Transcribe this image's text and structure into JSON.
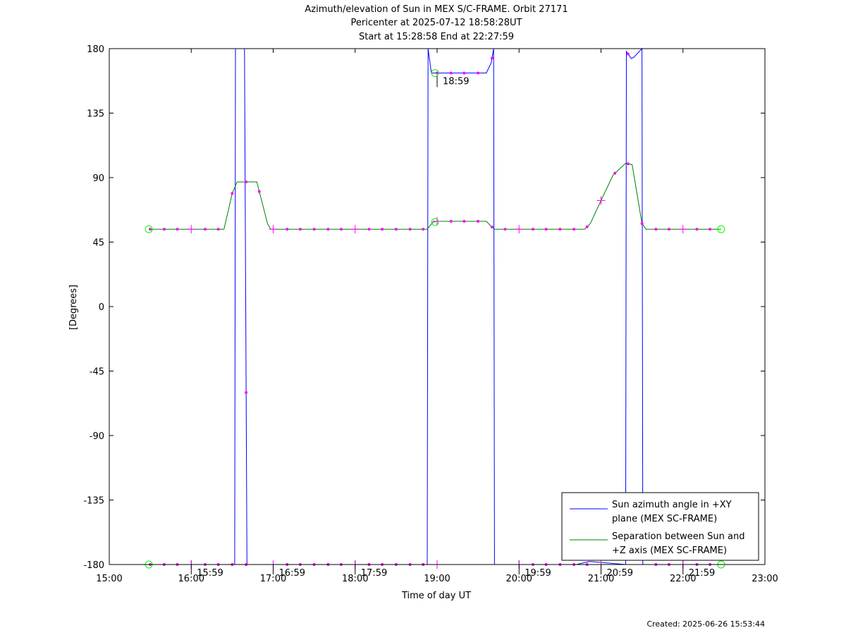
{
  "chart_data": {
    "type": "line",
    "title_lines": [
      "Azimuth/elevation of Sun in MEX S/C-FRAME.  Orbit 27171",
      "Pericenter at 2025-07-12 18:58:28UT",
      "Start at 15:28:58 End at 22:27:59"
    ],
    "xlabel": "Time of day UT",
    "ylabel": "[Degrees]",
    "xlim": [
      15.0,
      23.0
    ],
    "ylim": [
      -180,
      180
    ],
    "x_ticks": [
      {
        "value": 15,
        "label": "15:00"
      },
      {
        "value": 16,
        "label": "16:00"
      },
      {
        "value": 17,
        "label": "17:00"
      },
      {
        "value": 18,
        "label": "18:00"
      },
      {
        "value": 19,
        "label": "19:00"
      },
      {
        "value": 20,
        "label": "20:00"
      },
      {
        "value": 21,
        "label": "21:00"
      },
      {
        "value": 22,
        "label": "22:00"
      },
      {
        "value": 23,
        "label": "23:00"
      }
    ],
    "y_ticks": [
      180,
      135,
      90,
      45,
      0,
      -45,
      -90,
      -135,
      -180
    ],
    "time_markers": [
      {
        "x": 15.983,
        "y": -180,
        "label": "15:59"
      },
      {
        "x": 16.983,
        "y": -180,
        "label": "16:59"
      },
      {
        "x": 17.983,
        "y": -180,
        "label": "17:59"
      },
      {
        "x": 18.983,
        "y": 163,
        "label": "18:59"
      },
      {
        "x": 19.983,
        "y": -180,
        "label": "19:59"
      },
      {
        "x": 20.983,
        "y": -180,
        "label": "20:59"
      },
      {
        "x": 21.983,
        "y": -180,
        "label": "21:59"
      }
    ],
    "series": [
      {
        "name": "Sun azimuth angle in +XY plane (MEX SC-FRAME)",
        "color": "#0000ff",
        "points": [
          [
            15.483,
            -180
          ],
          [
            16.53,
            -180
          ],
          [
            16.54,
            180
          ],
          [
            16.65,
            180
          ],
          [
            16.68,
            -180
          ],
          [
            18.88,
            -180
          ],
          [
            18.89,
            180
          ],
          [
            18.93,
            163
          ],
          [
            19.0,
            163
          ],
          [
            19.6,
            163
          ],
          [
            19.66,
            170
          ],
          [
            19.69,
            180
          ],
          [
            19.7,
            -180
          ],
          [
            20.7,
            -180
          ],
          [
            20.85,
            -178
          ],
          [
            20.88,
            -178
          ],
          [
            21.3,
            -180
          ],
          [
            21.31,
            178
          ],
          [
            21.37,
            173
          ],
          [
            21.4,
            174
          ],
          [
            21.5,
            180
          ],
          [
            21.51,
            -180
          ],
          [
            22.466,
            -180
          ]
        ]
      },
      {
        "name": "Separation between Sun and +Z axis (MEX SC-FRAME)",
        "color": "#008000",
        "points": [
          [
            15.483,
            54
          ],
          [
            16.4,
            54
          ],
          [
            16.5,
            79
          ],
          [
            16.56,
            87
          ],
          [
            16.8,
            87
          ],
          [
            16.93,
            58
          ],
          [
            16.97,
            54
          ],
          [
            18.88,
            54
          ],
          [
            18.95,
            59
          ],
          [
            19.0,
            59.5
          ],
          [
            19.6,
            59.5
          ],
          [
            19.66,
            56
          ],
          [
            19.7,
            54
          ],
          [
            20.8,
            54
          ],
          [
            20.87,
            58
          ],
          [
            21.0,
            74
          ],
          [
            21.15,
            92
          ],
          [
            21.3,
            100
          ],
          [
            21.38,
            99
          ],
          [
            21.5,
            58
          ],
          [
            21.55,
            54
          ],
          [
            22.466,
            54
          ]
        ]
      }
    ],
    "markers_magenta": {
      "color": "#ff00ff",
      "dots_green_series": [
        15.5,
        15.67,
        15.83,
        16.17,
        16.33,
        16.5,
        16.67,
        16.83,
        17.17,
        17.33,
        17.5,
        17.67,
        17.83,
        18.17,
        18.33,
        18.5,
        18.67,
        18.83,
        19.17,
        19.33,
        19.5,
        19.67,
        19.83,
        20.17,
        20.33,
        20.5,
        20.67,
        20.83,
        21.17,
        21.33,
        21.5,
        21.67,
        21.83,
        22.17,
        22.33
      ],
      "dots_blue_series_bottom": [
        15.5,
        15.67,
        15.83,
        16.17,
        16.33,
        16.5,
        16.67,
        17.17,
        17.33,
        17.5,
        17.67,
        17.83,
        18.17,
        18.33,
        18.5,
        18.67,
        18.83,
        20.17,
        20.33,
        20.5,
        20.67,
        20.83,
        21.67,
        21.83,
        22.17,
        22.33
      ],
      "dots_blue_series_top": [
        16.67,
        19.0,
        19.17,
        19.33,
        19.5,
        19.67,
        21.33
      ],
      "plus_x": [
        16.0,
        17.0,
        18.0,
        19.0,
        20.0,
        21.0,
        22.0
      ]
    },
    "endpoint_circles": {
      "color": "#00ff00",
      "points": [
        [
          15.483,
          54
        ],
        [
          15.483,
          -180
        ],
        [
          22.466,
          54
        ],
        [
          22.466,
          -180
        ],
        [
          18.975,
          163
        ],
        [
          18.975,
          59
        ]
      ]
    },
    "legend": {
      "placement": "bottom-right",
      "entries": [
        {
          "lines": [
            "Sun azimuth angle in +XY",
            "plane (MEX SC-FRAME)"
          ],
          "color": "#0000ff"
        },
        {
          "lines": [
            "Separation between Sun and",
            "+Z axis (MEX SC-FRAME)"
          ],
          "color": "#008000"
        }
      ]
    },
    "footer": "Created: 2025-06-26 15:53:44"
  }
}
